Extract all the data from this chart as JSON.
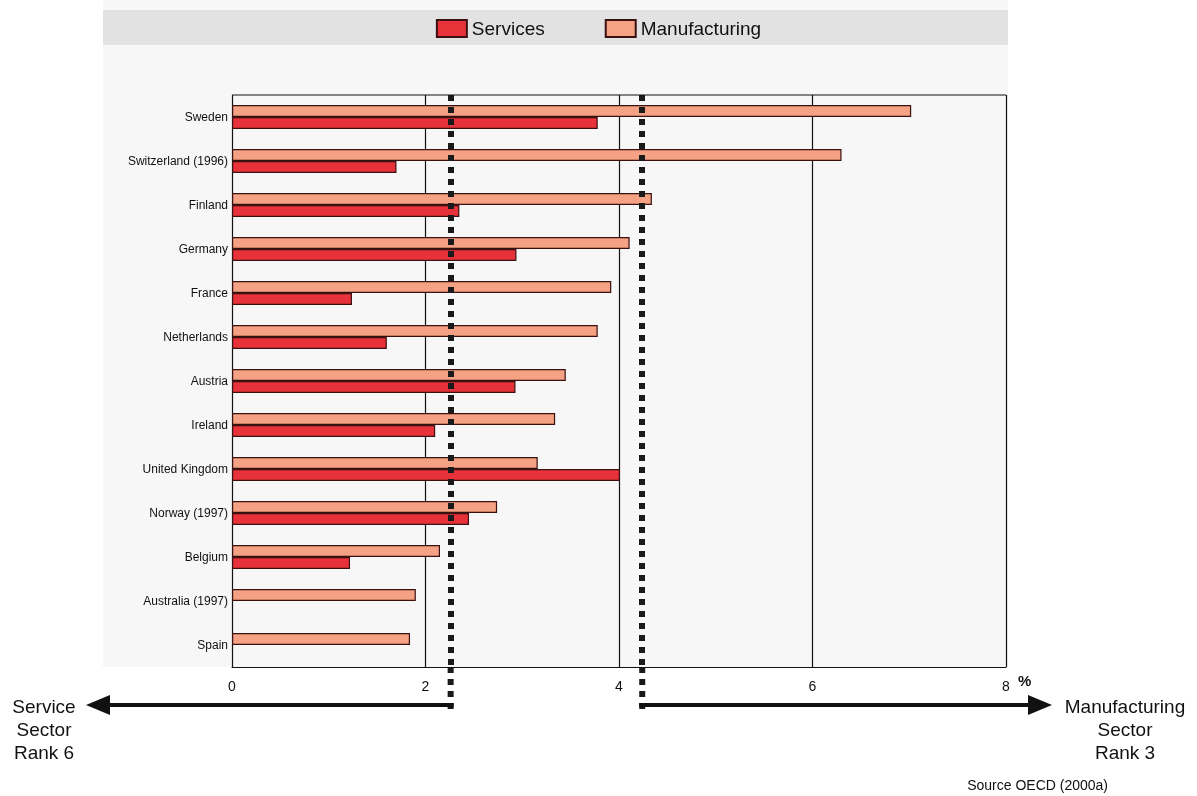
{
  "chart_data": {
    "type": "bar",
    "orientation": "horizontal",
    "xlabel": "%",
    "categories": [
      "Sweden",
      "Switzerland (1996)",
      "Finland",
      "Germany",
      "France",
      "Netherlands",
      "Austria",
      "Ireland",
      "United Kingdom",
      "Norway (1997)",
      "Belgium",
      "Australia (1997)",
      "Spain"
    ],
    "series": [
      {
        "name": "Services",
        "color": "#e8323a",
        "values": [
          3.78,
          1.7,
          2.35,
          2.94,
          1.24,
          1.6,
          2.93,
          2.1,
          4.01,
          2.45,
          1.22,
          null,
          null
        ]
      },
      {
        "name": "Manufacturing",
        "color": "#f4a283",
        "values": [
          7.02,
          6.3,
          4.34,
          4.11,
          3.92,
          3.78,
          3.45,
          3.34,
          3.16,
          2.74,
          2.15,
          1.9,
          1.84
        ]
      }
    ],
    "xlim": [
      0,
      8
    ],
    "xticks": [
      0,
      2,
      4,
      6,
      8
    ],
    "grid": "x",
    "legend": "top",
    "ref_lines": [
      {
        "axis": "x",
        "value": 2.26,
        "color": "#1a1a1a",
        "line_style": "dotted"
      },
      {
        "axis": "x",
        "value": 4.24,
        "color": "#1a1a1a",
        "line_style": "dotted"
      }
    ],
    "annotations": [
      "Service\nSector\nRank 6",
      "Manufacturing\nSector\nRank 3",
      "Source OECD (2000a)"
    ]
  }
}
